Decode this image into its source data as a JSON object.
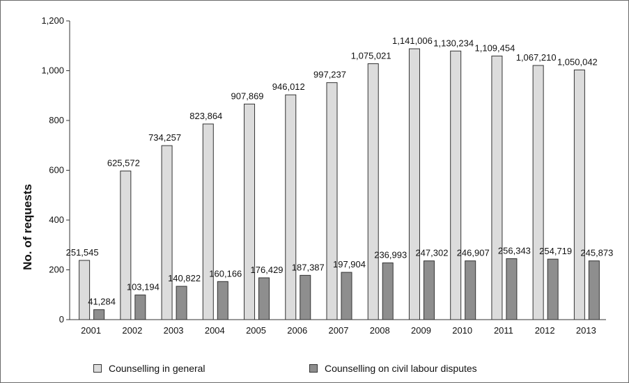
{
  "chart_data": {
    "type": "bar",
    "ylabel": "No. of requests",
    "xlabel": "",
    "ylim": [
      0,
      1200
    ],
    "yticks": [
      "0",
      "200",
      "400",
      "600",
      "800",
      "1,000",
      "1,200"
    ],
    "categories": [
      "2001",
      "2002",
      "2003",
      "2004",
      "2005",
      "2006",
      "2007",
      "2008",
      "2009",
      "2010",
      "2011",
      "2012",
      "2013"
    ],
    "series": [
      {
        "name": "Counselling in general",
        "color": "#dcdcdc",
        "values": [
          238,
          597,
          699,
          786,
          866,
          903,
          952,
          1028,
          1088,
          1079,
          1059,
          1021,
          1003
        ],
        "labels": [
          "251,545",
          "625,572",
          "734,257",
          "823,864",
          "907,869",
          "946,012",
          "997,237",
          "1,075,021",
          "1,141,006",
          "1,130,234",
          "1,109,454",
          "1,067,210",
          "1,050,042"
        ]
      },
      {
        "name": "Counselling on civil labour disputes",
        "color": "#8e8e8e",
        "values": [
          40,
          99,
          134,
          153,
          168,
          178,
          190,
          228,
          236,
          236,
          245,
          243,
          236
        ],
        "labels": [
          "41,284",
          "103,194",
          "140,822",
          "160,166",
          "176,429",
          "187,387",
          "197,904",
          "236,993",
          "247,302",
          "246,907",
          "256,343",
          "254,719",
          "245,873"
        ]
      }
    ],
    "legend_position": "bottom",
    "grid": false
  }
}
